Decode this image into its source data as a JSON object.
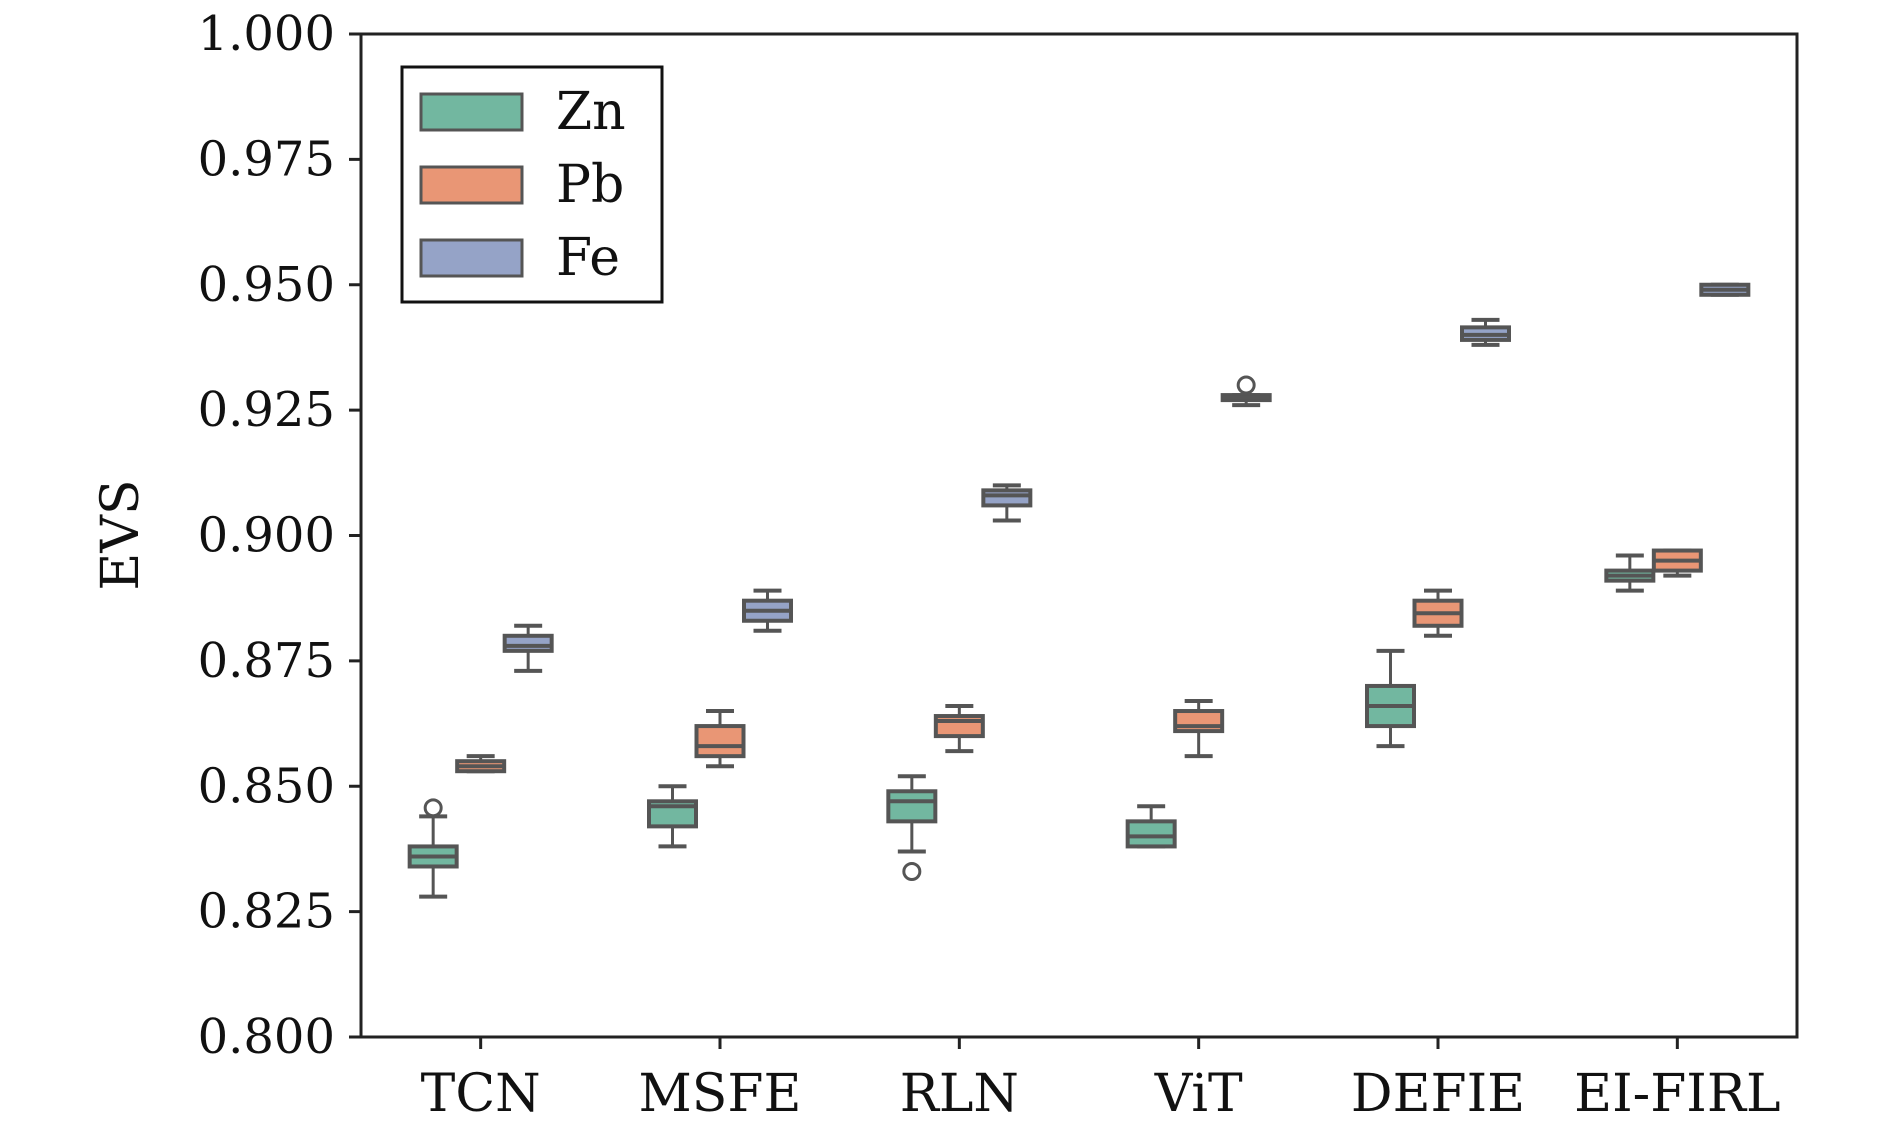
{
  "chart_data": {
    "type": "boxplot",
    "title": "",
    "xlabel": "",
    "ylabel": "EVS",
    "ylim": [
      0.8,
      1.0
    ],
    "yticks": [
      "0.800",
      "0.825",
      "0.850",
      "0.875",
      "0.900",
      "0.925",
      "0.950",
      "0.975",
      "1.000"
    ],
    "categories": [
      "TCN",
      "MSFE",
      "RLN",
      "ViT",
      "DEFIE",
      "EI-FIRL"
    ],
    "grid": false,
    "legend_position": "top-left",
    "series": [
      {
        "name": "Zn",
        "color": "#72b7a0",
        "boxes": [
          {
            "whislo": 0.828,
            "q1": 0.834,
            "med": 0.836,
            "q3": 0.838,
            "whishi": 0.844,
            "fliers": [
              0.8457
            ]
          },
          {
            "whislo": 0.838,
            "q1": 0.842,
            "med": 0.846,
            "q3": 0.847,
            "whishi": 0.85,
            "fliers": []
          },
          {
            "whislo": 0.837,
            "q1": 0.843,
            "med": 0.847,
            "q3": 0.849,
            "whishi": 0.852,
            "fliers": [
              0.833
            ]
          },
          {
            "whislo": 0.838,
            "q1": 0.838,
            "med": 0.84,
            "q3": 0.843,
            "whishi": 0.846,
            "fliers": []
          },
          {
            "whislo": 0.858,
            "q1": 0.862,
            "med": 0.866,
            "q3": 0.87,
            "whishi": 0.877,
            "fliers": []
          },
          {
            "whislo": 0.889,
            "q1": 0.891,
            "med": 0.892,
            "q3": 0.893,
            "whishi": 0.896,
            "fliers": []
          }
        ]
      },
      {
        "name": "Pb",
        "color": "#e99675",
        "boxes": [
          {
            "whislo": 0.853,
            "q1": 0.853,
            "med": 0.854,
            "q3": 0.855,
            "whishi": 0.856,
            "fliers": []
          },
          {
            "whislo": 0.854,
            "q1": 0.856,
            "med": 0.858,
            "q3": 0.862,
            "whishi": 0.865,
            "fliers": []
          },
          {
            "whislo": 0.857,
            "q1": 0.86,
            "med": 0.863,
            "q3": 0.864,
            "whishi": 0.866,
            "fliers": []
          },
          {
            "whislo": 0.856,
            "q1": 0.861,
            "med": 0.862,
            "q3": 0.865,
            "whishi": 0.867,
            "fliers": []
          },
          {
            "whislo": 0.88,
            "q1": 0.882,
            "med": 0.8845,
            "q3": 0.887,
            "whishi": 0.889,
            "fliers": []
          },
          {
            "whislo": 0.892,
            "q1": 0.893,
            "med": 0.895,
            "q3": 0.897,
            "whishi": 0.897,
            "fliers": []
          }
        ]
      },
      {
        "name": "Fe",
        "color": "#95a3c7",
        "boxes": [
          {
            "whislo": 0.873,
            "q1": 0.877,
            "med": 0.878,
            "q3": 0.88,
            "whishi": 0.882,
            "fliers": []
          },
          {
            "whislo": 0.881,
            "q1": 0.883,
            "med": 0.885,
            "q3": 0.887,
            "whishi": 0.889,
            "fliers": []
          },
          {
            "whislo": 0.903,
            "q1": 0.906,
            "med": 0.908,
            "q3": 0.909,
            "whishi": 0.91,
            "fliers": []
          },
          {
            "whislo": 0.926,
            "q1": 0.927,
            "med": 0.9275,
            "q3": 0.928,
            "whishi": 0.928,
            "fliers": [
              0.93
            ]
          },
          {
            "whislo": 0.938,
            "q1": 0.939,
            "med": 0.94,
            "q3": 0.9415,
            "whishi": 0.943,
            "fliers": []
          },
          {
            "whislo": 0.948,
            "q1": 0.948,
            "med": 0.949,
            "q3": 0.95,
            "whishi": 0.95,
            "fliers": []
          }
        ]
      }
    ]
  }
}
